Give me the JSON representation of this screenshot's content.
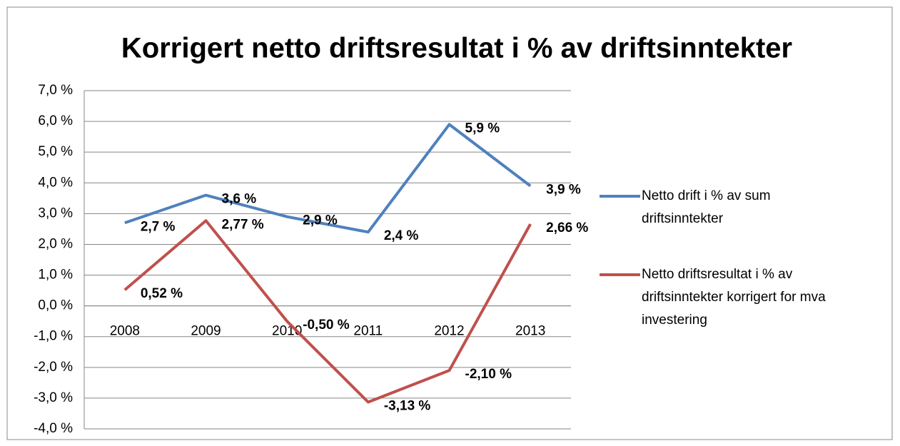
{
  "chart_data": {
    "type": "line",
    "title": "Korrigert netto driftsresultat i % av driftsinntekter",
    "categories": [
      "2008",
      "2009",
      "2010",
      "2011",
      "2012",
      "2013"
    ],
    "series": [
      {
        "name": "Netto drift i % av sum driftsinntekter",
        "color": "#4f81bd",
        "values": [
          2.7,
          3.6,
          2.9,
          2.4,
          5.9,
          3.9
        ],
        "value_labels": [
          "2,7 %",
          "3,6 %",
          "2,9 %",
          "2,4 %",
          "5,9 %",
          "3,9 %"
        ]
      },
      {
        "name": "Netto driftsresultat i % av driftsinntekter korrigert for mva investering",
        "color": "#c0504d",
        "values": [
          0.52,
          2.77,
          -0.5,
          -3.13,
          -2.1,
          2.66
        ],
        "value_labels": [
          "0,52 %",
          "2,77 %",
          "-0,50 %",
          "-3,13 %",
          "-2,10 %",
          "2,66 %"
        ]
      }
    ],
    "ylim": [
      -4,
      7
    ],
    "yticks": [
      {
        "value": -4,
        "label": "-4,0 %"
      },
      {
        "value": -3,
        "label": "-3,0 %"
      },
      {
        "value": -2,
        "label": "-2,0 %"
      },
      {
        "value": -1,
        "label": "-1,0 %"
      },
      {
        "value": 0,
        "label": "0,0 %"
      },
      {
        "value": 1,
        "label": "1,0 %"
      },
      {
        "value": 2,
        "label": "2,0 %"
      },
      {
        "value": 3,
        "label": "3,0 %"
      },
      {
        "value": 4,
        "label": "4,0 %"
      },
      {
        "value": 5,
        "label": "5,0 %"
      },
      {
        "value": 6,
        "label": "6,0 %"
      },
      {
        "value": 7,
        "label": "7,0 %"
      }
    ],
    "grid": true,
    "legend": "right"
  }
}
